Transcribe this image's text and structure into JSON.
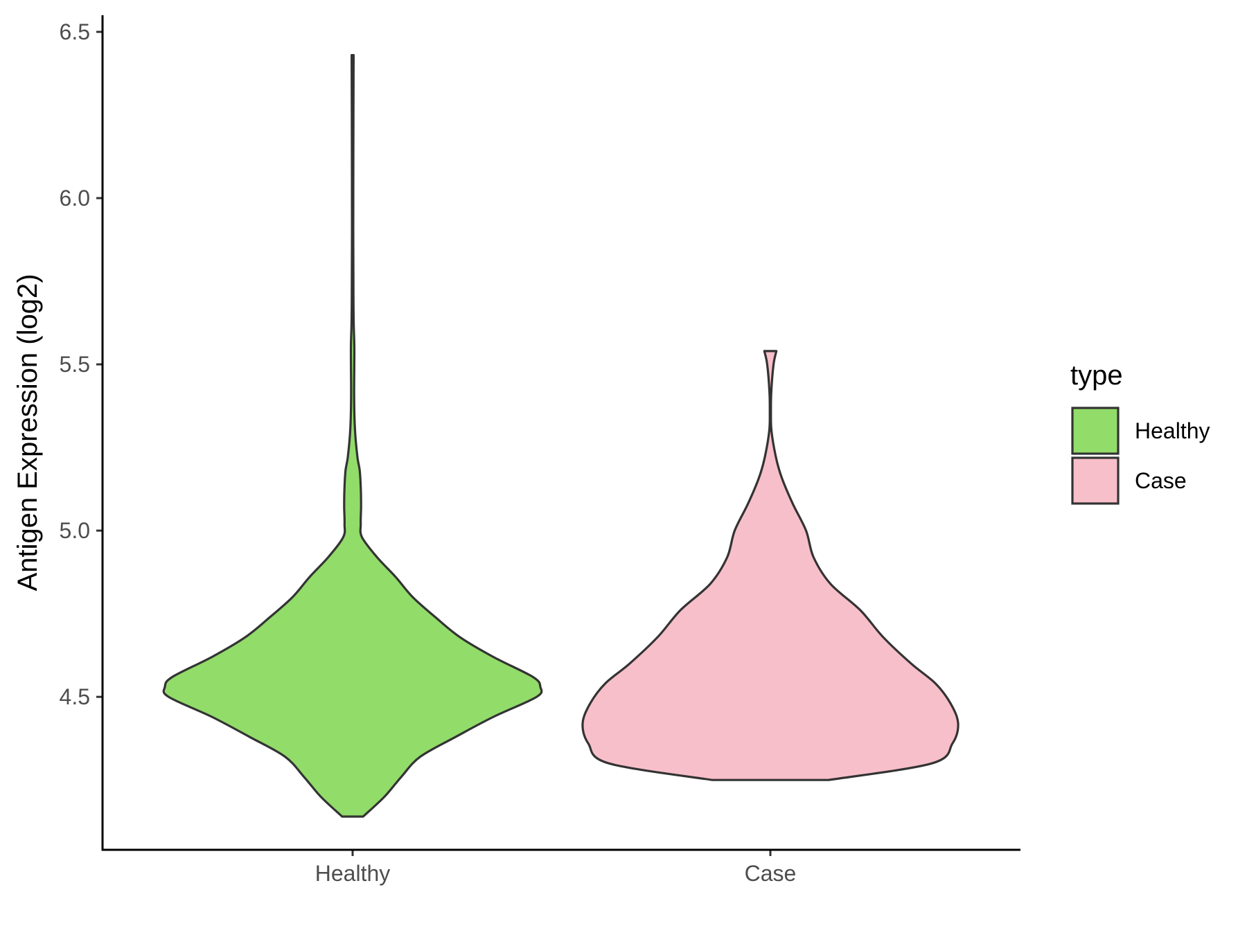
{
  "chart_data": {
    "type": "violin",
    "ylabel": "Antigen Expression (log2)",
    "xlabel": "",
    "ylim": [
      4.04,
      6.55
    ],
    "yticks": [
      4.5,
      5.0,
      5.5,
      6.0,
      6.5
    ],
    "ytick_labels": [
      "4.5",
      "5.0",
      "5.5",
      "6.0",
      "6.5"
    ],
    "categories": [
      "Healthy",
      "Case"
    ],
    "grid": false,
    "legend": {
      "title": "type",
      "position": "right",
      "entries": [
        {
          "label": "Healthy",
          "color": "#92dc6a"
        },
        {
          "label": "Case",
          "color": "#f7bfca"
        }
      ]
    },
    "series": [
      {
        "name": "Healthy",
        "color": "#92dc6a",
        "min": 4.14,
        "max": 6.43,
        "profile": [
          [
            4.14,
            0.056
          ],
          [
            4.2,
            0.17
          ],
          [
            4.26,
            0.26
          ],
          [
            4.32,
            0.36
          ],
          [
            4.38,
            0.55
          ],
          [
            4.44,
            0.75
          ],
          [
            4.5,
            0.98
          ],
          [
            4.53,
            1.0
          ],
          [
            4.56,
            0.96
          ],
          [
            4.62,
            0.75
          ],
          [
            4.68,
            0.57
          ],
          [
            4.74,
            0.44
          ],
          [
            4.8,
            0.32
          ],
          [
            4.86,
            0.23
          ],
          [
            4.92,
            0.13
          ],
          [
            4.98,
            0.05
          ],
          [
            5.02,
            0.043
          ],
          [
            5.07,
            0.045
          ],
          [
            5.12,
            0.044
          ],
          [
            5.18,
            0.038
          ],
          [
            5.22,
            0.026
          ],
          [
            5.3,
            0.013
          ],
          [
            5.4,
            0.008
          ],
          [
            5.5,
            0.009
          ],
          [
            5.56,
            0.009
          ],
          [
            5.62,
            0.006
          ],
          [
            5.7,
            0.0045
          ],
          [
            5.9,
            0.0035
          ],
          [
            6.2,
            0.004
          ],
          [
            6.43,
            0.005
          ]
        ]
      },
      {
        "name": "Case",
        "color": "#f7bfca",
        "min": 4.25,
        "max": 5.54,
        "profile": [
          [
            4.25,
            0.31
          ],
          [
            4.3,
            0.86
          ],
          [
            4.36,
            0.97
          ],
          [
            4.42,
            1.0
          ],
          [
            4.48,
            0.96
          ],
          [
            4.54,
            0.88
          ],
          [
            4.6,
            0.75
          ],
          [
            4.68,
            0.6
          ],
          [
            4.76,
            0.48
          ],
          [
            4.84,
            0.32
          ],
          [
            4.92,
            0.23
          ],
          [
            5.0,
            0.19
          ],
          [
            5.08,
            0.12
          ],
          [
            5.16,
            0.06
          ],
          [
            5.22,
            0.03
          ],
          [
            5.3,
            0.006
          ],
          [
            5.36,
            0.003
          ],
          [
            5.42,
            0.005
          ],
          [
            5.5,
            0.017
          ],
          [
            5.54,
            0.032
          ]
        ]
      }
    ]
  }
}
